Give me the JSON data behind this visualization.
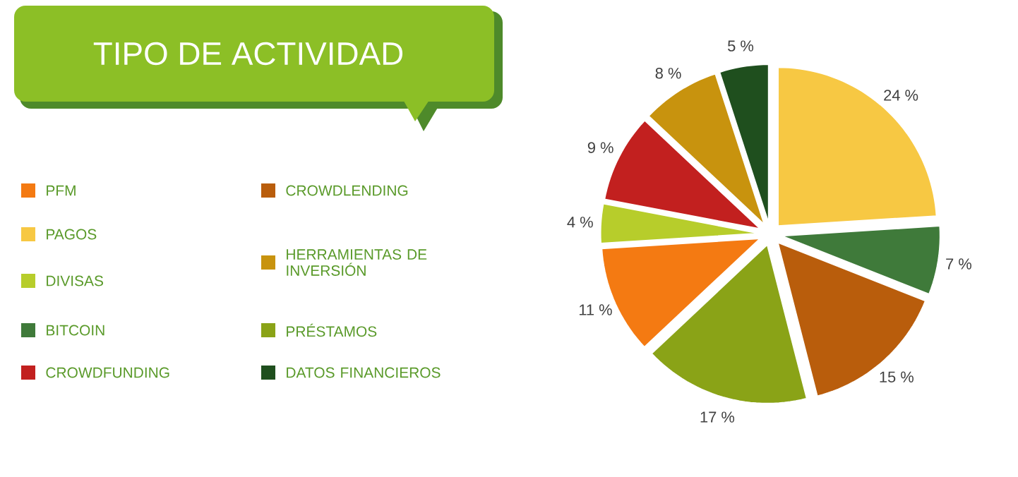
{
  "chart_data": {
    "type": "pie",
    "title": "TIPO DE ACTIVIDAD",
    "categories": [
      "PAGOS",
      "BITCOIN",
      "CROWDLENDING",
      "PRÉSTAMOS",
      "PFM",
      "DIVISAS",
      "CROWDFUNDING",
      "HERRAMIENTAS DE INVERSIÓN",
      "DATOS FINANCIEROS"
    ],
    "values": [
      24,
      7,
      15,
      17,
      11,
      4,
      9,
      8,
      5
    ],
    "value_labels": [
      "24 %",
      "7 %",
      "15 %",
      "17 %",
      "11 %",
      "4 %",
      "9 %",
      "8 %",
      "5 %"
    ],
    "colors": [
      "#f7c843",
      "#3f7a3a",
      "#b95d0c",
      "#8aa317",
      "#f47a12",
      "#b7cd2b",
      "#c2201f",
      "#c8930e",
      "#1f4f1e"
    ],
    "legend": "left"
  }
}
